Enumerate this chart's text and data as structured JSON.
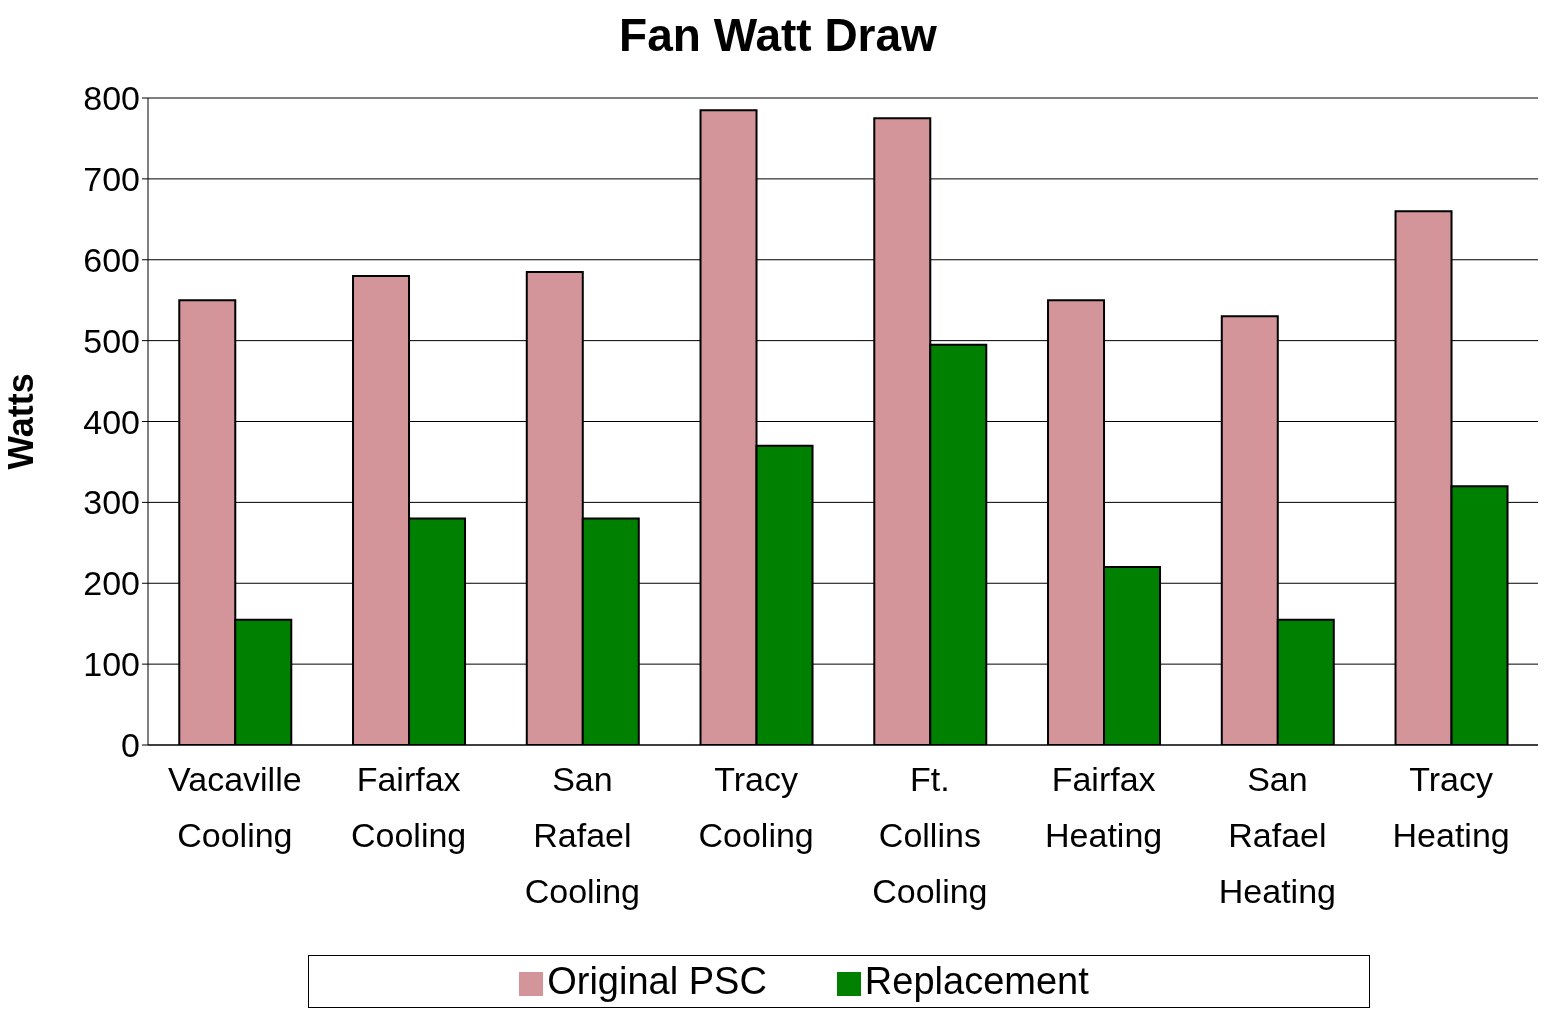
{
  "chart_data": {
    "type": "bar",
    "title": "Fan Watt Draw",
    "ylabel": "Watts",
    "categories": [
      "Vacaville Cooling",
      "Fairfax Cooling",
      "San Rafael Cooling",
      "Tracy Cooling",
      "Ft. Collins Cooling",
      "Fairfax Heating",
      "San Rafael Heating",
      "Tracy Heating"
    ],
    "series": [
      {
        "name": "Original PSC",
        "color": "#d4959a",
        "values": [
          550,
          580,
          585,
          785,
          775,
          550,
          530,
          660
        ]
      },
      {
        "name": "Replacement",
        "color": "#008000",
        "values": [
          155,
          280,
          280,
          370,
          495,
          220,
          155,
          320
        ]
      }
    ],
    "ylim": [
      0,
      800
    ],
    "yticks": [
      0,
      100,
      200,
      300,
      400,
      500,
      600,
      700,
      800
    ],
    "grid": "y",
    "legend": "bottom"
  }
}
